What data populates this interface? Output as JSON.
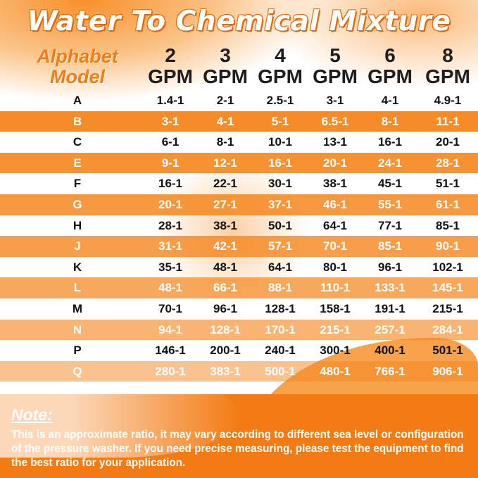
{
  "title": "Water To Chemical Mixture",
  "header": {
    "model_label_1": "Alphabet",
    "model_label_2": "Model",
    "columns": [
      {
        "num": "2",
        "unit": "GPM"
      },
      {
        "num": "3",
        "unit": "GPM"
      },
      {
        "num": "4",
        "unit": "GPM"
      },
      {
        "num": "5",
        "unit": "GPM"
      },
      {
        "num": "6",
        "unit": "GPM"
      },
      {
        "num": "8",
        "unit": "GPM"
      }
    ]
  },
  "rows": [
    {
      "model": "A",
      "values": [
        "1.4-1",
        "2-1",
        "2.5-1",
        "3-1",
        "4-1",
        "4.9-1"
      ]
    },
    {
      "model": "B",
      "values": [
        "3-1",
        "4-1",
        "5-1",
        "6.5-1",
        "8-1",
        "11-1"
      ]
    },
    {
      "model": "C",
      "values": [
        "6-1",
        "8-1",
        "10-1",
        "13-1",
        "16-1",
        "20-1"
      ]
    },
    {
      "model": "E",
      "values": [
        "9-1",
        "12-1",
        "16-1",
        "20-1",
        "24-1",
        "28-1"
      ]
    },
    {
      "model": "F",
      "values": [
        "16-1",
        "22-1",
        "30-1",
        "38-1",
        "45-1",
        "51-1"
      ]
    },
    {
      "model": "G",
      "values": [
        "20-1",
        "27-1",
        "37-1",
        "46-1",
        "55-1",
        "61-1"
      ]
    },
    {
      "model": "H",
      "values": [
        "28-1",
        "38-1",
        "50-1",
        "64-1",
        "77-1",
        "85-1"
      ]
    },
    {
      "model": "J",
      "values": [
        "31-1",
        "42-1",
        "57-1",
        "70-1",
        "85-1",
        "90-1"
      ]
    },
    {
      "model": "K",
      "values": [
        "35-1",
        "48-1",
        "64-1",
        "80-1",
        "96-1",
        "102-1"
      ]
    },
    {
      "model": "L",
      "values": [
        "48-1",
        "66-1",
        "88-1",
        "110-1",
        "133-1",
        "145-1"
      ]
    },
    {
      "model": "M",
      "values": [
        "70-1",
        "96-1",
        "128-1",
        "158-1",
        "191-1",
        "215-1"
      ]
    },
    {
      "model": "N",
      "values": [
        "94-1",
        "128-1",
        "170-1",
        "215-1",
        "257-1",
        "284-1"
      ]
    },
    {
      "model": "P",
      "values": [
        "146-1",
        "200-1",
        "240-1",
        "300-1",
        "400-1",
        "501-1"
      ]
    },
    {
      "model": "Q",
      "values": [
        "280-1",
        "383-1",
        "500-1",
        "480-1",
        "766-1",
        "906-1"
      ]
    }
  ],
  "note": {
    "heading": "Note:",
    "text": "This is an approximate ratio, it may vary according to different sea level or configuration of the pressure washer. If you need precise measuring, please test the equipment to find the best ratio for your application."
  },
  "colors": {
    "accent": "#f47b14",
    "row_stripe": "#f5861d"
  }
}
